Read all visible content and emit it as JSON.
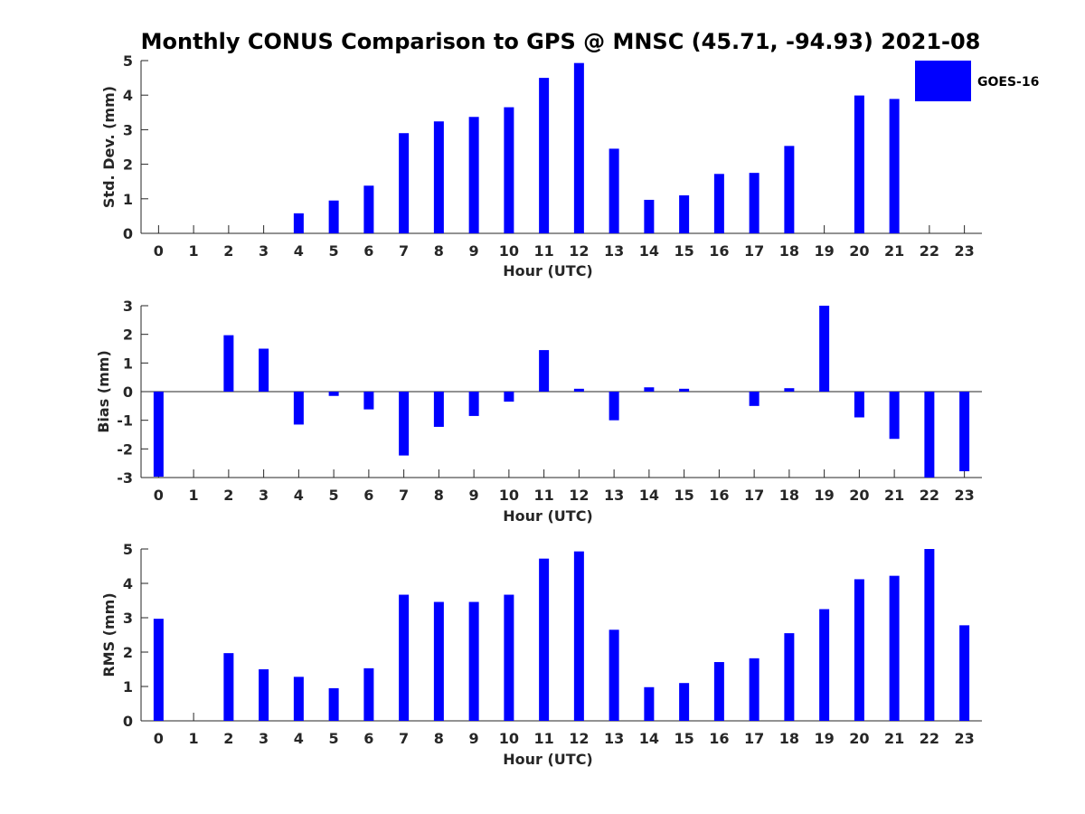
{
  "chart_data": {
    "type": "bar",
    "title": "Monthly CONUS Comparison to GPS @ MNSC (45.71, -94.93) 2021-08",
    "legend": {
      "entries": [
        "GOES-16"
      ],
      "placement": "top-right"
    },
    "series_color": "#0000ff",
    "panels": [
      {
        "id": "std",
        "ylabel": "Std. Dev. (mm)",
        "xlabel": "Hour (UTC)",
        "ylim": [
          0,
          5
        ],
        "yticks": [
          0,
          1,
          2,
          3,
          4,
          5
        ],
        "zero_line": false,
        "categories": [
          "0",
          "1",
          "2",
          "3",
          "4",
          "5",
          "6",
          "7",
          "8",
          "9",
          "10",
          "11",
          "12",
          "13",
          "14",
          "15",
          "16",
          "17",
          "18",
          "19",
          "20",
          "21",
          "22",
          "23"
        ],
        "series": [
          {
            "name": "GOES-16",
            "values": [
              0,
              0,
              0,
              0,
              0.58,
              0.95,
              1.38,
              2.9,
              3.24,
              3.37,
              3.65,
              4.5,
              4.93,
              2.45,
              0.97,
              1.1,
              1.72,
              1.75,
              2.53,
              0,
              3.99,
              3.89,
              0,
              0
            ]
          }
        ]
      },
      {
        "id": "bias",
        "ylabel": "Bias (mm)",
        "xlabel": "Hour (UTC)",
        "ylim": [
          -3,
          3
        ],
        "yticks": [
          -3,
          -2,
          -1,
          0,
          1,
          2,
          3
        ],
        "zero_line": true,
        "categories": [
          "0",
          "1",
          "2",
          "3",
          "4",
          "5",
          "6",
          "7",
          "8",
          "9",
          "10",
          "11",
          "12",
          "13",
          "14",
          "15",
          "16",
          "17",
          "18",
          "19",
          "20",
          "21",
          "22",
          "23"
        ],
        "series": [
          {
            "name": "GOES-16",
            "values": [
              -2.97,
              0,
              1.97,
              1.5,
              -1.15,
              -0.15,
              -0.62,
              -2.23,
              -1.23,
              -0.85,
              -0.35,
              1.45,
              0.1,
              -1.0,
              0.15,
              0.1,
              0,
              -0.5,
              0.12,
              3.0,
              -0.9,
              -1.65,
              -3.0,
              -2.78
            ]
          }
        ]
      },
      {
        "id": "rms",
        "ylabel": "RMS (mm)",
        "xlabel": "Hour (UTC)",
        "ylim": [
          0,
          5
        ],
        "yticks": [
          0,
          1,
          2,
          3,
          4,
          5
        ],
        "zero_line": false,
        "categories": [
          "0",
          "1",
          "2",
          "3",
          "4",
          "5",
          "6",
          "7",
          "8",
          "9",
          "10",
          "11",
          "12",
          "13",
          "14",
          "15",
          "16",
          "17",
          "18",
          "19",
          "20",
          "21",
          "22",
          "23"
        ],
        "series": [
          {
            "name": "GOES-16",
            "values": [
              2.97,
              0,
              1.97,
              1.5,
              1.28,
              0.95,
              1.53,
              3.67,
              3.46,
              3.46,
              3.67,
              4.72,
              4.93,
              2.65,
              0.98,
              1.1,
              1.71,
              1.82,
              2.55,
              3.25,
              4.12,
              4.22,
              5.0,
              2.78
            ]
          }
        ]
      }
    ]
  }
}
